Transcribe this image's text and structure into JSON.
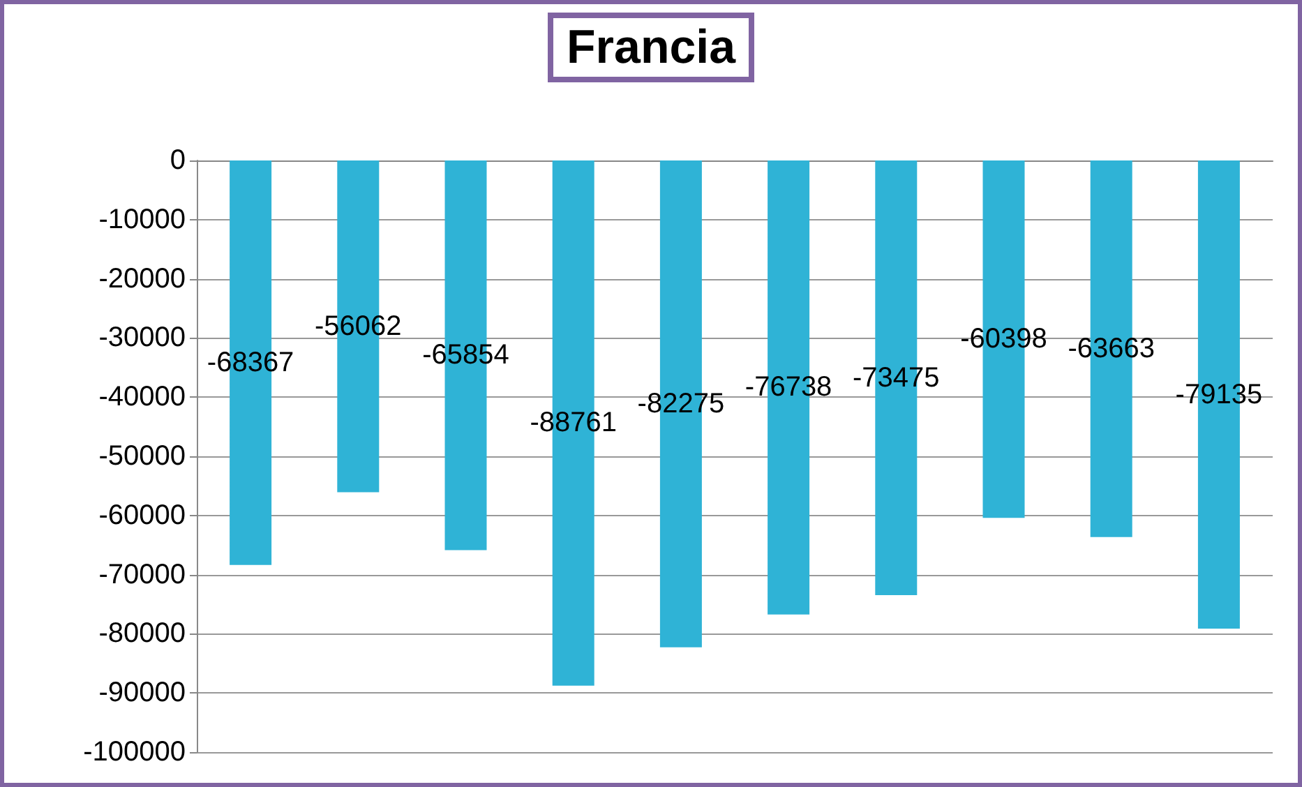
{
  "chart_data": {
    "type": "bar",
    "title": "Francia",
    "categories": [
      null,
      null,
      null,
      null,
      null,
      null,
      null,
      null,
      null,
      null
    ],
    "values": [
      -68367,
      -56062,
      -65854,
      -88761,
      -82275,
      -76738,
      -73475,
      -60398,
      -63663,
      -79135
    ],
    "color": "#2fb3d6",
    "ylim": [
      -100000,
      0
    ],
    "yticks": [
      -100000,
      -90000,
      -80000,
      -70000,
      -60000,
      -50000,
      -40000,
      -30000,
      -20000,
      -10000,
      0
    ],
    "grid": "y",
    "data_labels": true
  }
}
